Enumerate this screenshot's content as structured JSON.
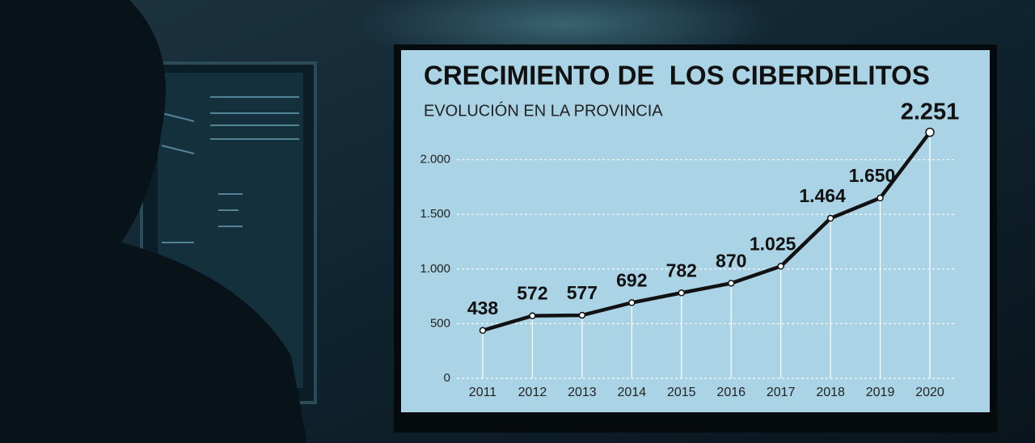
{
  "chart_data": {
    "type": "line",
    "title": "CRECIMIENTO DE  LOS CIBERDELITOS",
    "subtitle": "EVOLUCIÓN EN LA PROVINCIA",
    "categories": [
      "2011",
      "2012",
      "2013",
      "2014",
      "2015",
      "2016",
      "2017",
      "2018",
      "2019",
      "2020"
    ],
    "values": [
      438,
      572,
      577,
      692,
      782,
      870,
      1025,
      1464,
      1650,
      2251
    ],
    "value_labels": [
      "438",
      "572",
      "577",
      "692",
      "782",
      "870",
      "1.025",
      "1.464",
      "1.650",
      "2.251"
    ],
    "color": "#111111",
    "ylim": [
      0,
      2300
    ],
    "yticks": [
      0,
      500,
      {
        "value": 1000,
        "label": "1.000"
      },
      {
        "value": 1500,
        "label": "1.500"
      },
      {
        "value": 2000,
        "label": "2.000"
      }
    ],
    "grid": true
  }
}
